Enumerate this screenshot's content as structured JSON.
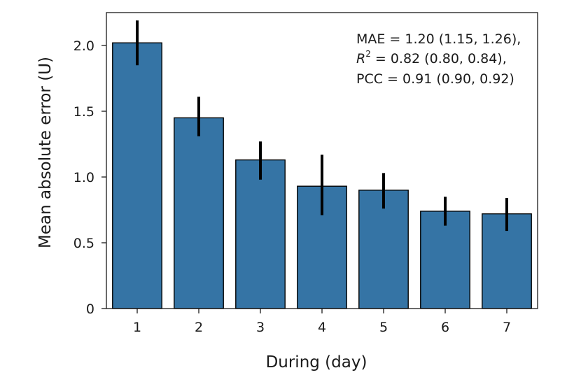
{
  "chart_data": {
    "type": "bar",
    "categories": [
      "1",
      "2",
      "3",
      "4",
      "5",
      "6",
      "7"
    ],
    "values": [
      2.02,
      1.45,
      1.13,
      0.93,
      0.9,
      0.74,
      0.72
    ],
    "error_low": [
      1.85,
      1.31,
      0.98,
      0.71,
      0.76,
      0.63,
      0.59
    ],
    "error_high": [
      2.19,
      1.61,
      1.27,
      1.17,
      1.03,
      0.85,
      0.84
    ],
    "xlabel": "During (day)",
    "ylabel": "Mean absolute error (U)",
    "ylim": [
      0,
      2.25
    ],
    "yticks": [
      0,
      0.5,
      1.0,
      1.5,
      2.0
    ],
    "ytick_labels": [
      "0",
      "0.5",
      "1.0",
      "1.5",
      "2.0"
    ],
    "bar_color": "#3574a5",
    "error_color": "#000000",
    "grid": false,
    "annotations": {
      "line1": "MAE = 1.20 (1.15, 1.26),",
      "line2_symbol": "R",
      "line2_sup": "2",
      "line2_rest": " = 0.82 (0.80, 0.84),",
      "line3": "PCC = 0.91 (0.90, 0.92)"
    }
  }
}
